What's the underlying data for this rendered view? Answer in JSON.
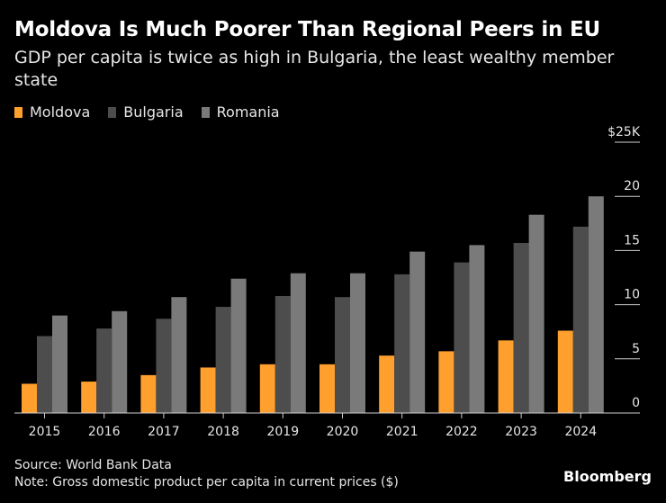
{
  "chart_data": {
    "type": "bar",
    "title": "Moldova Is Much Poorer Than Regional Peers in EU",
    "subtitle": "GDP per capita is twice as high in Bulgaria, the least wealthy member state",
    "categories": [
      "2015",
      "2016",
      "2017",
      "2018",
      "2019",
      "2020",
      "2021",
      "2022",
      "2023",
      "2024"
    ],
    "series": [
      {
        "name": "Moldova",
        "color": "#ff9f2e",
        "values": [
          2.7,
          2.9,
          3.5,
          4.2,
          4.5,
          4.5,
          5.3,
          5.7,
          6.7,
          7.6
        ]
      },
      {
        "name": "Bulgaria",
        "color": "#4d4d4d",
        "values": [
          7.1,
          7.8,
          8.7,
          9.8,
          10.8,
          10.7,
          12.8,
          13.9,
          15.7,
          17.2
        ]
      },
      {
        "name": "Romania",
        "color": "#7a7a7a",
        "values": [
          9.0,
          9.4,
          10.7,
          12.4,
          12.9,
          12.9,
          14.9,
          15.5,
          18.3,
          20.0
        ]
      }
    ],
    "ylim": [
      0,
      25
    ],
    "yticks": [
      {
        "value": 0,
        "label": "0"
      },
      {
        "value": 5,
        "label": "5"
      },
      {
        "value": 10,
        "label": "10"
      },
      {
        "value": 15,
        "label": "15"
      },
      {
        "value": 20,
        "label": "20"
      },
      {
        "value": 25,
        "label": "$25K"
      }
    ],
    "xlabel": "",
    "ylabel": "",
    "legend_position": "top-left",
    "grid": false
  },
  "footer": {
    "source": "Source: World Bank Data",
    "note": "Note: Gross domestic product per capita in current prices ($)"
  },
  "brand": "Bloomberg"
}
